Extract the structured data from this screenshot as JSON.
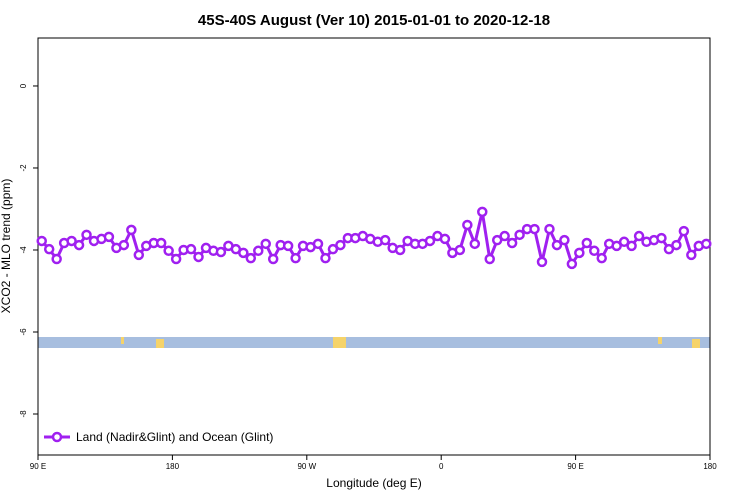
{
  "chart_data": {
    "type": "line",
    "title": "45S-40S August (Ver 10)   2015-01-01 to 2020-12-18",
    "x_label": "Longitude (deg E)",
    "y_label": "XCO2 - MLO trend (ppm)",
    "xlim": [
      90,
      540
    ],
    "xticks": [
      {
        "value": 90,
        "label": "90 E"
      },
      180,
      {
        "value": 270,
        "label": "90 W"
      },
      {
        "value": 360,
        "label": "0"
      },
      {
        "value": 450,
        "label": "90 E"
      },
      {
        "value": 540,
        "label": "180"
      }
    ],
    "ylim": [
      -9,
      1.17
    ],
    "yticks": [
      0,
      -2,
      -4,
      -6,
      -8
    ],
    "grid": false,
    "legend": "lower left",
    "series": [
      {
        "name": "Land (Nadir&Glint) and Ocean (Glint)",
        "color": "#a020f0",
        "x": [
          92.5,
          97.5,
          102.5,
          107.5,
          112.5,
          117.5,
          122.5,
          127.5,
          132.5,
          137.5,
          142.5,
          147.5,
          152.5,
          157.5,
          162.5,
          167.5,
          172.5,
          177.5,
          182.5,
          187.5,
          192.5,
          197.5,
          202.5,
          207.5,
          212.5,
          217.5,
          222.5,
          227.5,
          232.5,
          237.5,
          242.5,
          247.5,
          252.5,
          257.5,
          262.5,
          267.5,
          272.5,
          277.5,
          282.5,
          287.5,
          292.5,
          297.5,
          302.5,
          307.5,
          312.5,
          317.5,
          322.5,
          327.5,
          332.5,
          337.5,
          342.5,
          347.5,
          352.5,
          357.5,
          362.5,
          367.5,
          372.5,
          377.5,
          382.5,
          387.5,
          392.5,
          397.5,
          402.5,
          407.5,
          412.5,
          417.5,
          422.5,
          427.5,
          432.5,
          437.5,
          442.5,
          447.5,
          452.5,
          457.5,
          462.5,
          467.5,
          472.5,
          477.5,
          482.5,
          487.5,
          492.5,
          497.5,
          502.5,
          507.5,
          512.5,
          517.5,
          522.5,
          527.5,
          532.5,
          537.5
        ],
        "values": [
          -3.78,
          -3.98,
          -4.22,
          -3.83,
          -3.78,
          -3.88,
          -3.63,
          -3.78,
          -3.73,
          -3.68,
          -3.95,
          -3.88,
          -3.51,
          -4.12,
          -3.9,
          -3.83,
          -3.83,
          -4.02,
          -4.22,
          -4.0,
          -3.98,
          -4.17,
          -3.95,
          -4.02,
          -4.05,
          -3.9,
          -3.98,
          -4.07,
          -4.2,
          -4.02,
          -3.85,
          -4.22,
          -3.88,
          -3.9,
          -4.2,
          -3.9,
          -3.93,
          -3.85,
          -4.2,
          -3.98,
          -3.88,
          -3.71,
          -3.71,
          -3.66,
          -3.73,
          -3.8,
          -3.76,
          -3.95,
          -4.0,
          -3.78,
          -3.85,
          -3.85,
          -3.78,
          -3.66,
          -3.73,
          -4.07,
          -4.0,
          -3.39,
          -3.85,
          -3.07,
          -4.22,
          -3.76,
          -3.66,
          -3.83,
          -3.63,
          -3.49,
          -3.49,
          -4.29,
          -3.49,
          -3.88,
          -3.76,
          -4.34,
          -4.07,
          -3.83,
          -4.02,
          -4.2,
          -3.85,
          -3.9,
          -3.8,
          -3.9,
          -3.66,
          -3.8,
          -3.76,
          -3.71,
          -3.98,
          -3.88,
          -3.54,
          -4.12,
          -3.9,
          -3.85
        ]
      }
    ]
  }
}
